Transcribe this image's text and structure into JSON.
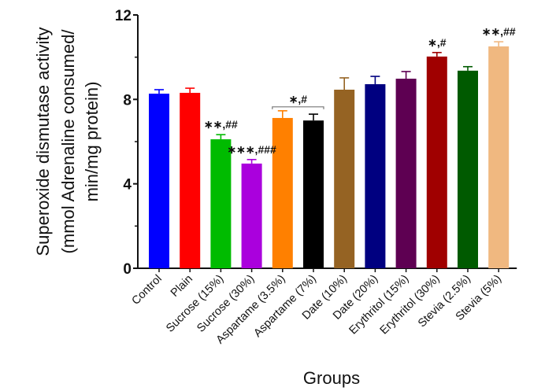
{
  "chart_data": {
    "type": "bar",
    "title": "",
    "xlabel": "Groups",
    "ylabel_lines": [
      "Superoxide dismutase activity",
      "(mmol Adrenaline consumed/",
      "min/mg protein)"
    ],
    "ylim": [
      0,
      12
    ],
    "yticks_major": [
      0,
      4,
      8,
      12
    ],
    "yticks_minor": [
      2,
      6,
      10
    ],
    "grid": false,
    "legend": "none",
    "categories": [
      "Control",
      "Plain",
      "Sucrose (15%)",
      "Sucrose (30%)",
      "Aspartame (3.5%)",
      "Aspartame (7%)",
      "Date (10%)",
      "Date (20%)",
      "Erythritol (15%)",
      "Erythritol (30%)",
      "Stevia (2.5%)",
      "Stevia (5%)"
    ],
    "values": [
      8.27,
      8.31,
      6.11,
      4.96,
      7.12,
      7.0,
      8.46,
      8.72,
      8.98,
      10.03,
      9.36,
      10.51
    ],
    "errors": [
      0.19,
      0.22,
      0.22,
      0.19,
      0.34,
      0.3,
      0.56,
      0.37,
      0.34,
      0.19,
      0.19,
      0.22
    ],
    "colors": [
      "#0000ff",
      "#ff0000",
      "#00bb00",
      "#aa00dd",
      "#ff8000",
      "#000000",
      "#956323",
      "#000080",
      "#5e0052",
      "#a00000",
      "#005a00",
      "#f0b880"
    ],
    "annotations": [
      {
        "category_index": 2,
        "text": "∗∗,##"
      },
      {
        "category_index": 3,
        "text": "∗∗∗,###"
      },
      {
        "category_index": 9,
        "text": "∗,#"
      },
      {
        "category_index": 11,
        "text": "∗∗,##"
      }
    ],
    "bracket_annotation": {
      "from_index": 4,
      "to_index": 5,
      "text": "∗,#"
    }
  }
}
